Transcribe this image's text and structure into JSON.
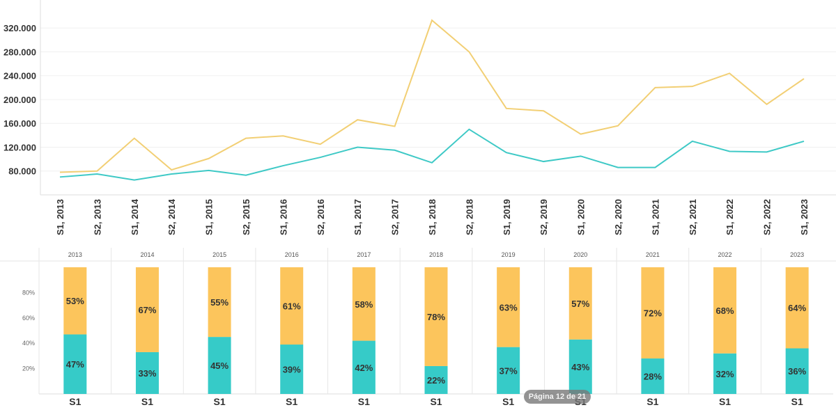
{
  "colors": {
    "series_a": "#f2cf74",
    "series_b": "#3ec9c6",
    "bar_top": "#fcc55c",
    "bar_bottom": "#36cbc8"
  },
  "pager": "Página 12 de 21",
  "chart_data": [
    {
      "type": "line",
      "x": [
        "S1, 2013",
        "S2, 2013",
        "S1, 2014",
        "S2, 2014",
        "S1, 2015",
        "S2, 2015",
        "S1, 2016",
        "S2, 2016",
        "S1, 2017",
        "S2, 2017",
        "S1, 2018",
        "S2, 2018",
        "S1, 2019",
        "S2, 2019",
        "S1, 2020",
        "S2, 2020",
        "S1, 2021",
        "S2, 2021",
        "S1, 2022",
        "S2, 2022",
        "S1, 2023"
      ],
      "yticks": [
        "80.000",
        "120.000",
        "160.000",
        "200.000",
        "240.000",
        "280.000",
        "320.000"
      ],
      "ylim": [
        40000,
        367000
      ],
      "grid": true,
      "series": [
        {
          "color": "#f2cf74",
          "values": [
            78000,
            80000,
            135000,
            82000,
            101000,
            135000,
            139000,
            125000,
            166000,
            155000,
            333000,
            280000,
            185000,
            181000,
            142000,
            156000,
            220000,
            222000,
            244000,
            192000,
            235000
          ]
        },
        {
          "color": "#3ec9c6",
          "values": [
            70000,
            75000,
            65000,
            75000,
            81000,
            73000,
            89000,
            103000,
            120000,
            115000,
            94000,
            150000,
            111000,
            96000,
            105000,
            86000,
            86000,
            130000,
            113000,
            112000,
            130000
          ]
        }
      ]
    },
    {
      "type": "bar",
      "stacked": true,
      "panels": [
        "2013",
        "2014",
        "2015",
        "2016",
        "2017",
        "2018",
        "2019",
        "2020",
        "2021",
        "2022",
        "2023"
      ],
      "category": "S1",
      "yticks": [
        "20%",
        "40%",
        "60%",
        "80%"
      ],
      "ylim": [
        0,
        100
      ],
      "series": [
        {
          "color": "#36cbc8",
          "values": [
            47,
            33,
            45,
            39,
            42,
            22,
            37,
            43,
            28,
            32,
            36
          ]
        },
        {
          "color": "#fcc55c",
          "values": [
            53,
            67,
            55,
            61,
            58,
            78,
            63,
            57,
            72,
            68,
            64
          ]
        }
      ]
    }
  ]
}
